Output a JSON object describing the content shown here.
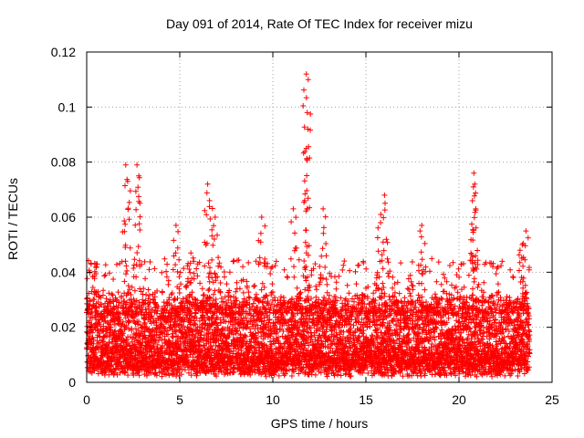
{
  "chart_data": {
    "type": "scatter",
    "title": "Day 091 of 2014, Rate Of TEC Index for receiver mizu",
    "xlabel": "GPS time / hours",
    "ylabel": "ROTI / TECUs",
    "xlim": [
      0,
      25
    ],
    "ylim": [
      0,
      0.12
    ],
    "xticks": [
      0,
      5,
      10,
      15,
      20,
      25
    ],
    "xtick_labels": [
      "0",
      "5",
      "10",
      "15",
      "20",
      "25"
    ],
    "yticks": [
      0,
      0.02,
      0.04,
      0.06,
      0.08,
      0.1,
      0.12
    ],
    "ytick_labels": [
      "0",
      "0.02",
      "0.04",
      "0.06",
      "0.08",
      "0.1",
      "0.12"
    ],
    "grid": true,
    "marker": "+",
    "color": "#ff0000",
    "series": [
      {
        "name": "ROTI",
        "x_range": [
          0,
          23.8
        ],
        "dense_band": [
          0.005,
          0.03
        ],
        "peaks": [
          {
            "x": 0.5,
            "y": 0.043
          },
          {
            "x": 2.1,
            "y": 0.079
          },
          {
            "x": 2.2,
            "y": 0.073
          },
          {
            "x": 2.7,
            "y": 0.079
          },
          {
            "x": 2.8,
            "y": 0.075
          },
          {
            "x": 4.8,
            "y": 0.057
          },
          {
            "x": 5.6,
            "y": 0.047
          },
          {
            "x": 6.5,
            "y": 0.072
          },
          {
            "x": 6.6,
            "y": 0.066
          },
          {
            "x": 6.9,
            "y": 0.06
          },
          {
            "x": 9.4,
            "y": 0.06
          },
          {
            "x": 11.1,
            "y": 0.063
          },
          {
            "x": 11.8,
            "y": 0.112
          },
          {
            "x": 11.9,
            "y": 0.11
          },
          {
            "x": 11.85,
            "y": 0.098
          },
          {
            "x": 11.8,
            "y": 0.085
          },
          {
            "x": 12.7,
            "y": 0.063
          },
          {
            "x": 15.8,
            "y": 0.061
          },
          {
            "x": 16.0,
            "y": 0.068
          },
          {
            "x": 18.0,
            "y": 0.057
          },
          {
            "x": 20.8,
            "y": 0.076
          },
          {
            "x": 20.85,
            "y": 0.072
          },
          {
            "x": 20.9,
            "y": 0.063
          },
          {
            "x": 23.6,
            "y": 0.055
          },
          {
            "x": 23.4,
            "y": 0.05
          }
        ]
      }
    ]
  }
}
